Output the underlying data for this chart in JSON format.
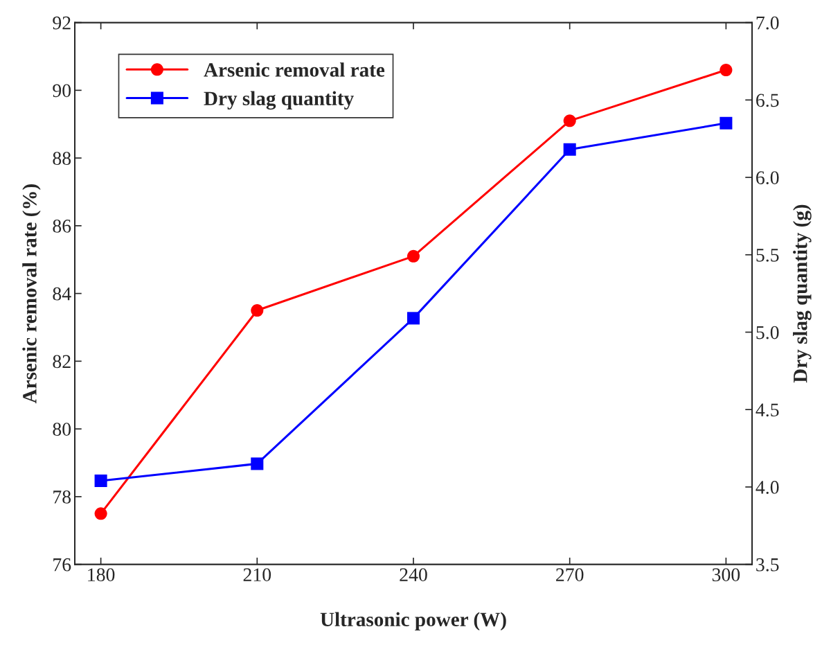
{
  "chart_data": {
    "type": "line",
    "xlabel": "Ultrasonic power (W)",
    "ylabel": "Arsenic removal rate (%)",
    "y2label": "Dry slag quantity (g)",
    "x": [
      180,
      210,
      240,
      270,
      300
    ],
    "series": [
      {
        "name": "Arsenic removal rate",
        "color": "#ff0000",
        "marker": "circle",
        "values": [
          77.5,
          83.5,
          85.1,
          89.1,
          90.6
        ]
      },
      {
        "name": "Dry slag quantity",
        "color": "#0000ff",
        "marker": "square",
        "axis": "y2",
        "values": [
          4.04,
          4.15,
          5.09,
          6.18,
          6.35
        ]
      }
    ],
    "xlim": [
      175,
      305
    ],
    "xticks": [
      180,
      210,
      240,
      270,
      300
    ],
    "ylim": [
      76,
      92
    ],
    "yticks": [
      76,
      78,
      80,
      82,
      84,
      86,
      88,
      90,
      92
    ],
    "y2lim": [
      3.5,
      7.0
    ],
    "y2ticks": [
      {
        "value": 3.5,
        "label": "3.5"
      },
      {
        "value": 4.0,
        "label": "4.0"
      },
      {
        "value": 4.5,
        "label": "4.5"
      },
      {
        "value": 5.0,
        "label": "5.0"
      },
      {
        "value": 5.5,
        "label": "5.5"
      },
      {
        "value": 6.0,
        "label": "6.0"
      },
      {
        "value": 6.5,
        "label": "6.5"
      },
      {
        "value": 7.0,
        "label": "7.0"
      }
    ],
    "grid": false,
    "legend": "top left",
    "line_style": "solid"
  }
}
